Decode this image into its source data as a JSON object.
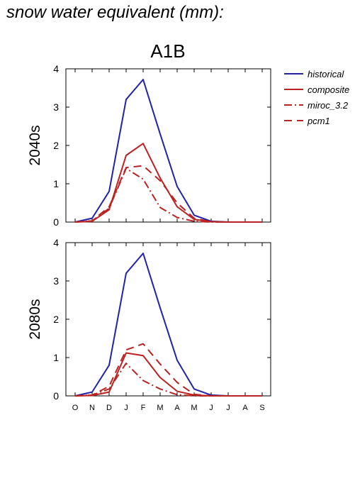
{
  "title": "snow water equivalent (mm):",
  "subtitle": "A1B",
  "colors": {
    "historical": "#2222aa",
    "scenario": "#bb2222"
  },
  "legend": [
    {
      "label": "historical",
      "color": "#2222aa",
      "dash": "solid"
    },
    {
      "label": "composite",
      "color": "#bb2222",
      "dash": "solid"
    },
    {
      "label": "miroc_3.2",
      "color": "#bb2222",
      "dash": "dashdot"
    },
    {
      "label": "pcm1",
      "color": "#bb2222",
      "dash": "dashed"
    }
  ],
  "chart_data": [
    {
      "type": "line",
      "row_label": "2040s",
      "categories": [
        "O",
        "N",
        "D",
        "J",
        "F",
        "M",
        "A",
        "M",
        "J",
        "J",
        "A",
        "S"
      ],
      "ylim": [
        0,
        4
      ],
      "yticks": [
        0,
        1,
        2,
        3,
        4
      ],
      "series": [
        {
          "name": "historical",
          "values": [
            0.0,
            0.1,
            0.8,
            3.2,
            3.72,
            2.3,
            0.93,
            0.18,
            0.02,
            0.0,
            0.0,
            0.0
          ]
        },
        {
          "name": "composite",
          "values": [
            0.0,
            0.02,
            0.32,
            1.74,
            2.05,
            1.15,
            0.4,
            0.07,
            0.01,
            0.0,
            0.0,
            0.0
          ]
        },
        {
          "name": "miroc_3.2",
          "values": [
            0.0,
            0.03,
            0.36,
            1.4,
            1.12,
            0.38,
            0.12,
            0.02,
            0.0,
            0.0,
            0.0,
            0.0
          ]
        },
        {
          "name": "pcm1",
          "values": [
            0.0,
            0.03,
            0.4,
            1.42,
            1.47,
            1.08,
            0.5,
            0.1,
            0.01,
            0.0,
            0.0,
            0.0
          ]
        }
      ]
    },
    {
      "type": "line",
      "row_label": "2080s",
      "categories": [
        "O",
        "N",
        "D",
        "J",
        "F",
        "M",
        "A",
        "M",
        "J",
        "J",
        "A",
        "S"
      ],
      "ylim": [
        0,
        4
      ],
      "yticks": [
        0,
        1,
        2,
        3,
        4
      ],
      "series": [
        {
          "name": "historical",
          "values": [
            0.0,
            0.1,
            0.8,
            3.2,
            3.72,
            2.3,
            0.93,
            0.18,
            0.02,
            0.0,
            0.0,
            0.0
          ]
        },
        {
          "name": "composite",
          "values": [
            0.0,
            0.01,
            0.1,
            1.12,
            1.05,
            0.48,
            0.12,
            0.02,
            0.0,
            0.0,
            0.0,
            0.0
          ]
        },
        {
          "name": "miroc_3.2",
          "values": [
            0.0,
            0.02,
            0.18,
            0.85,
            0.4,
            0.18,
            0.03,
            0.0,
            0.0,
            0.0,
            0.0,
            0.0
          ]
        },
        {
          "name": "pcm1",
          "values": [
            0.0,
            0.02,
            0.25,
            1.2,
            1.36,
            0.83,
            0.35,
            0.04,
            0.0,
            0.0,
            0.0,
            0.0
          ]
        }
      ]
    }
  ]
}
